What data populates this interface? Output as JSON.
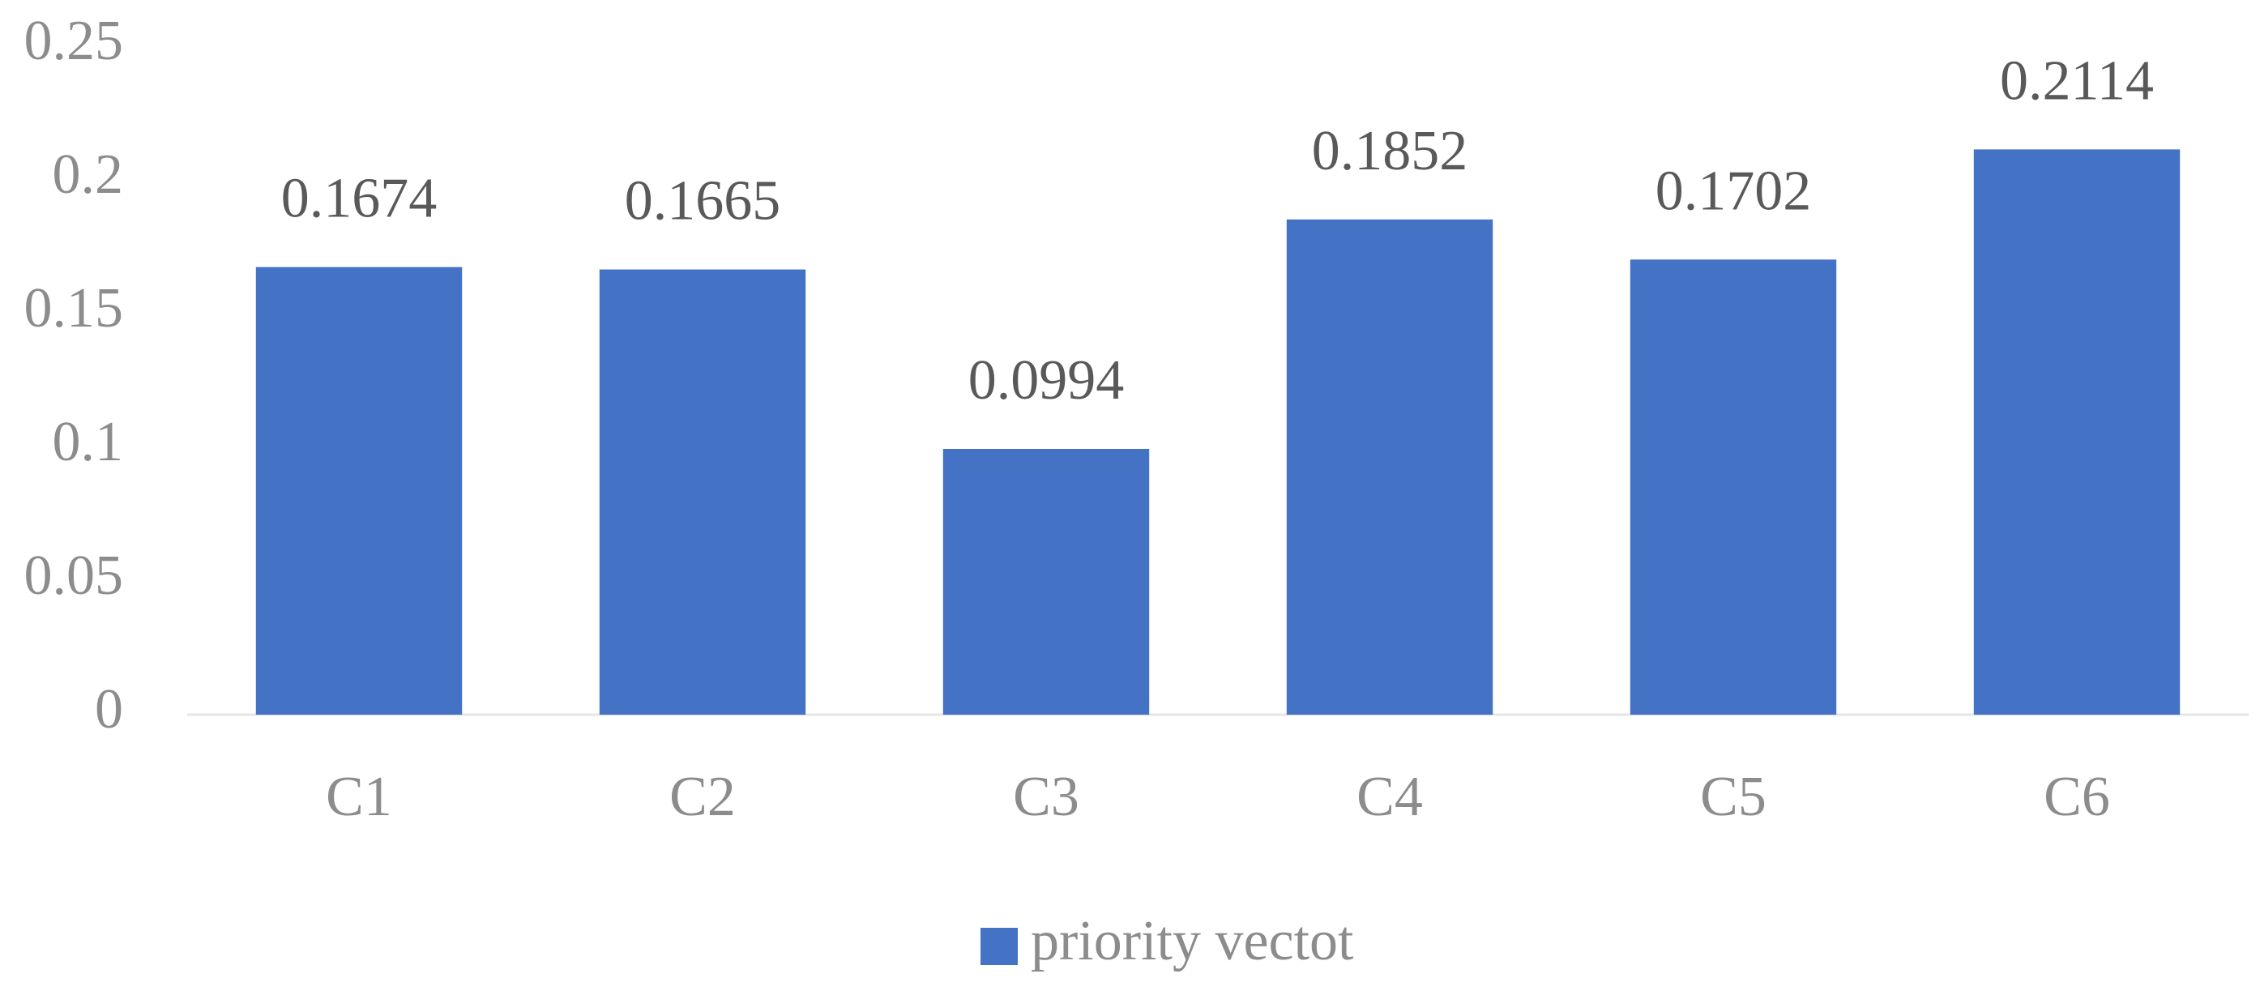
{
  "chart_data": {
    "type": "bar",
    "categories": [
      "C1",
      "C2",
      "C3",
      "C4",
      "C5",
      "C6"
    ],
    "series": [
      {
        "name": "priority vectot",
        "color": "#4472c4",
        "values": [
          0.1674,
          0.1665,
          0.0994,
          0.1852,
          0.1702,
          0.2114
        ]
      }
    ],
    "ylim": [
      0,
      0.25
    ],
    "yticks": [
      0,
      0.05,
      0.1,
      0.15,
      0.2,
      0.25
    ],
    "grid": false,
    "legend": "bottom"
  }
}
